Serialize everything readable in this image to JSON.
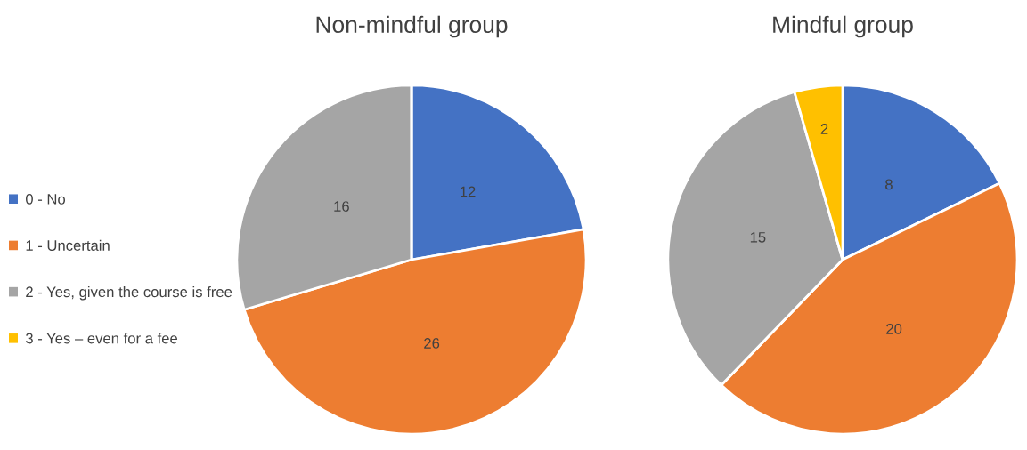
{
  "chart_data": [
    {
      "type": "pie",
      "title": "Non-mindful group",
      "categories": [
        "0 - No",
        "1 - Uncertain",
        "2 - Yes, given the course is free",
        "3 - Yes – even for a fee"
      ],
      "values": [
        12,
        26,
        16,
        0
      ],
      "value_labels": [
        "12",
        "26",
        "16",
        null
      ],
      "colors": [
        "#4472c4",
        "#ed7d31",
        "#a5a5a5",
        "#ffc000"
      ],
      "legend": "left"
    },
    {
      "type": "pie",
      "title": "Mindful group",
      "categories": [
        null,
        null,
        null,
        null
      ],
      "values": [
        8,
        20,
        15,
        2
      ],
      "data_labels": true,
      "colors": [
        "#4472c4",
        "#ed7d31",
        "#a5a5a5",
        "#ffc000"
      ]
    }
  ]
}
